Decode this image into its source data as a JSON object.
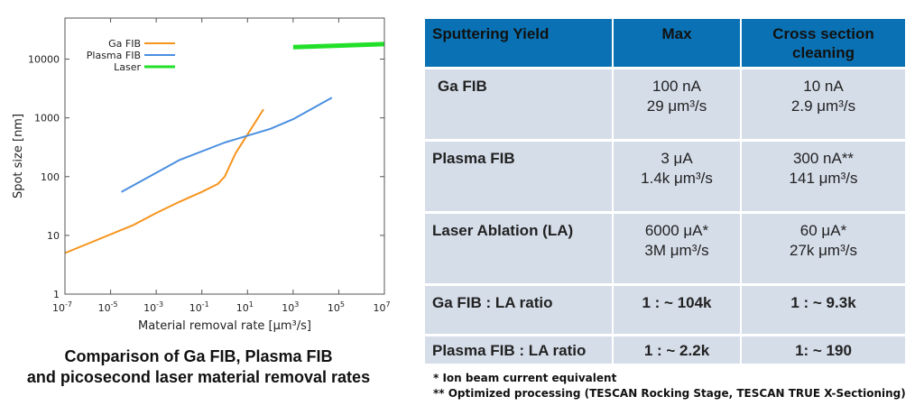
{
  "chart_data": {
    "type": "line",
    "xscale": "log",
    "yscale": "log",
    "xlabel": "Material removal rate [μm³/s]",
    "ylabel": "Spot size [nm]",
    "xlim": [
      1e-07,
      10000000.0
    ],
    "ylim": [
      1,
      50000
    ],
    "xticks": [
      {
        "value": 1e-07,
        "base": "10",
        "exp": "-7"
      },
      {
        "value": 1e-05,
        "base": "10",
        "exp": "-5"
      },
      {
        "value": 0.001,
        "base": "10",
        "exp": "-3"
      },
      {
        "value": 0.1,
        "base": "10",
        "exp": "-1"
      },
      {
        "value": 10,
        "base": "10",
        "exp": "1"
      },
      {
        "value": 1000,
        "base": "10",
        "exp": "3"
      },
      {
        "value": 100000,
        "base": "10",
        "exp": "5"
      },
      {
        "value": 10000000,
        "base": "10",
        "exp": "7"
      }
    ],
    "yticks": [
      {
        "value": 1,
        "label": "1"
      },
      {
        "value": 10,
        "label": "10"
      },
      {
        "value": 100,
        "label": "100"
      },
      {
        "value": 1000,
        "label": "1000"
      },
      {
        "value": 10000,
        "label": "10000"
      }
    ],
    "series": [
      {
        "name": "Ga FIB",
        "color": "#f7941d",
        "width": 2,
        "points": [
          [
            1e-07,
            5
          ],
          [
            0.0001,
            15
          ],
          [
            0.001,
            24
          ],
          [
            0.01,
            37
          ],
          [
            0.1,
            55
          ],
          [
            0.5,
            75
          ],
          [
            1,
            100
          ],
          [
            3,
            250
          ],
          [
            10,
            520
          ],
          [
            50,
            1400
          ]
        ]
      },
      {
        "name": "Plasma FIB",
        "color": "#4a8fe0",
        "width": 2,
        "points": [
          [
            3e-05,
            55
          ],
          [
            0.01,
            190
          ],
          [
            1,
            380
          ],
          [
            100,
            650
          ],
          [
            1000,
            950
          ],
          [
            50000,
            2200
          ]
        ]
      },
      {
        "name": "Laser",
        "color": "#22e02a",
        "width": 5,
        "points": [
          [
            1000,
            16000
          ],
          [
            10000000,
            18000
          ]
        ]
      }
    ]
  },
  "caption": {
    "line1": "Comparison of Ga FIB, Plasma FIB",
    "line2": "and picosecond laser material removal rates"
  },
  "table": {
    "header": [
      "Sputtering Yield",
      "Max",
      "Cross section",
      "cleaning"
    ],
    "rows": [
      {
        "label": "Ga FIB",
        "max1": "100 nA",
        "max2": "29 μm³/s",
        "cs1": "10 nA",
        "cs2": "2.9 μm³/s"
      },
      {
        "label": "Plasma FIB",
        "max1": "3 μA",
        "max2": "1.4k μm³/s",
        "cs1": "300 nA**",
        "cs2": "141 μm³/s"
      },
      {
        "label": "Laser Ablation (LA)",
        "max1": "6000 μA*",
        "max2": "3M μm³/s",
        "cs1": "60 μA*",
        "cs2": "27k μm³/s"
      },
      {
        "label": "Ga FIB : LA ratio",
        "max1": "1 : ~ 104k",
        "cs1": "1 : ~ 9.3k"
      },
      {
        "label": "Plasma FIB : LA ratio",
        "max1": "1 : ~ 2.2k",
        "cs1": "1: ~ 190"
      }
    ]
  },
  "notes": {
    "n1": "* Ion beam current equivalent",
    "n2": "** Optimized processing (TESCAN Rocking Stage, TESCAN TRUE X-Sectioning)"
  }
}
